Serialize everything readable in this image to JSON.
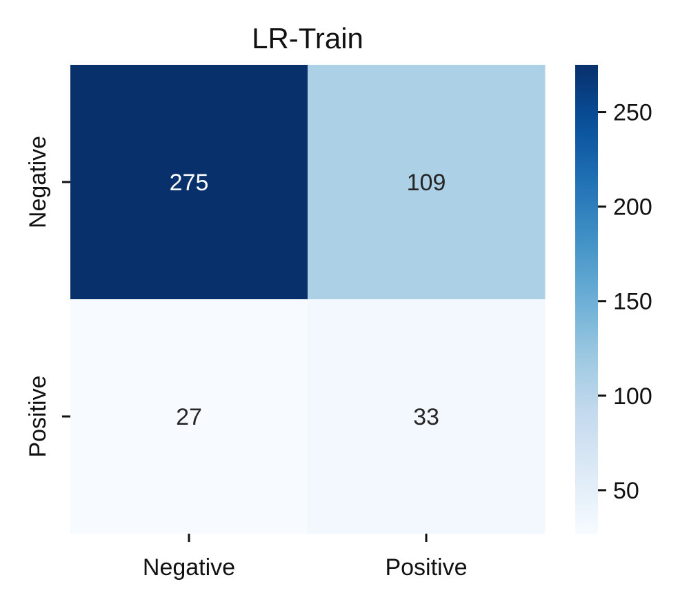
{
  "chart_data": {
    "type": "heatmap",
    "title": "LR-Train",
    "xlabel": "",
    "ylabel": "",
    "x_categories": [
      "Negative",
      "Positive"
    ],
    "y_categories": [
      "Negative",
      "Positive"
    ],
    "values": [
      [
        275,
        109
      ],
      [
        27,
        33
      ]
    ],
    "colorbar": {
      "min": 27,
      "max": 275,
      "ticks": [
        50,
        100,
        150,
        200,
        250
      ],
      "tick_labels": [
        "50",
        "100",
        "150",
        "200",
        "250"
      ],
      "colormap": "Blues"
    },
    "colors": {
      "low": "#f7fbff",
      "high": "#08306b",
      "text_dark": "#262626",
      "text_light": "#ffffff"
    },
    "grid": false,
    "legend": "colorbar-right"
  }
}
